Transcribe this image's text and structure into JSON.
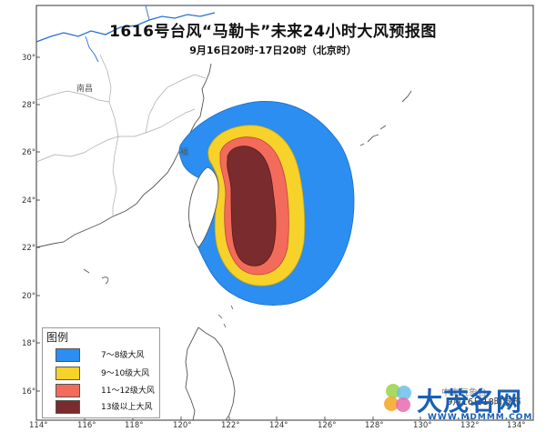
{
  "title": "1616号台风“马勒卡”未来24小时大风预报图",
  "subtitle": "9月16日20时-17日20时（北京时）",
  "map": {
    "lon_ticks": [
      "114°",
      "116°",
      "118°",
      "120°",
      "122°",
      "124°",
      "126°",
      "128°",
      "130°",
      "132°",
      "134°"
    ],
    "lat_ticks": [
      "16°",
      "18°",
      "20°",
      "22°",
      "24°",
      "26°",
      "28°",
      "30°"
    ],
    "places": [
      {
        "name": "南昌"
      },
      {
        "name": "福"
      }
    ]
  },
  "legend": {
    "title": "图例",
    "items": [
      {
        "label": "7～8级大风",
        "color": "#2b8ef0"
      },
      {
        "label": "9～10级大风",
        "color": "#f6d22a"
      },
      {
        "label": "11～12级大风",
        "color": "#f26b5b"
      },
      {
        "label": "13级以上大风",
        "color": "#7a2b2e"
      }
    ]
  },
  "watermark": {
    "issuer": "中央气象台",
    "issue_time": "9月16日18时发布",
    "site": "大茂名网",
    "site_url_text": "WWW.MDMMM.COM"
  },
  "colors": {
    "wind_7_8": "#2b8ef0",
    "wind_9_10": "#f6d22a",
    "wind_11_12": "#f26b5b",
    "wind_13_plus": "#7a2b2e",
    "coast": "#555555",
    "border": "#aaaaaa",
    "river": "#2a6fd6"
  }
}
